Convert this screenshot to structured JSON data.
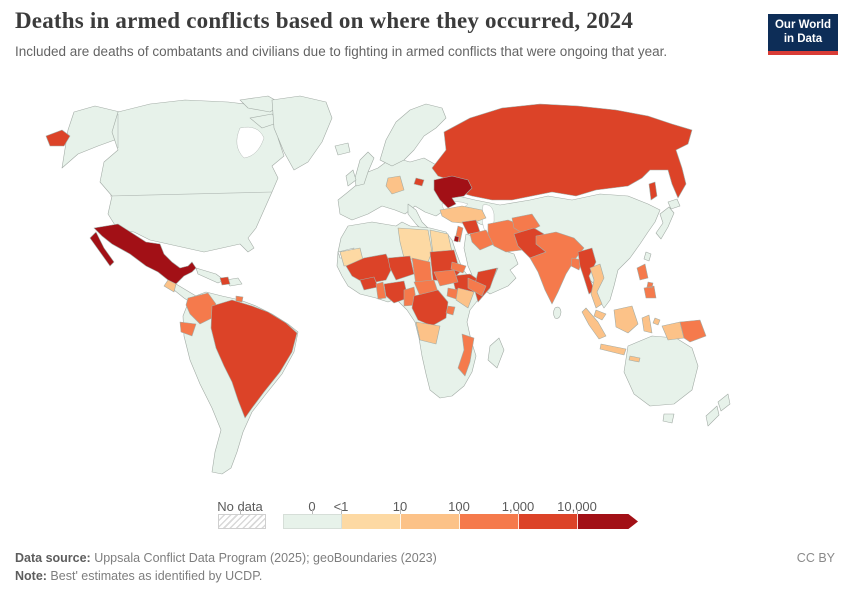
{
  "header": {
    "title": "Deaths in armed conflicts based on where they occurred, 2024",
    "subtitle": "Included are deaths of combatants and civilians due to fighting in armed conflicts that were ongoing that year.",
    "logo": {
      "line1": "Our World",
      "line2": "in Data",
      "bg": "#0d2d57",
      "accent": "#d93c36"
    }
  },
  "legend": {
    "no_data_label": "No data",
    "ticks": [
      "0",
      "<1",
      "10",
      "100",
      "1,000",
      "10,000"
    ]
  },
  "map": {
    "palette": {
      "b0": "#e7f2ea",
      "b1": "#fdd9a3",
      "b10": "#fcc288",
      "b100": "#f57a4c",
      "b1000": "#dc4328",
      "b10000": "#a21016",
      "hatch_line": "#d9d9d9"
    },
    "countries": [
      {
        "id": "ukraine",
        "band": "b10000"
      },
      {
        "id": "mexico",
        "band": "b10000"
      },
      {
        "id": "palestine",
        "band": "b10000"
      },
      {
        "id": "russia",
        "band": "b1000"
      },
      {
        "id": "brazil",
        "band": "b1000"
      },
      {
        "id": "haiti",
        "band": "b1000"
      },
      {
        "id": "syria",
        "band": "b1000"
      },
      {
        "id": "pakistan",
        "band": "b1000"
      },
      {
        "id": "myanmar",
        "band": "b1000"
      },
      {
        "id": "mali",
        "band": "b1000"
      },
      {
        "id": "niger",
        "band": "b1000"
      },
      {
        "id": "burkina-faso",
        "band": "b1000"
      },
      {
        "id": "nigeria",
        "band": "b1000"
      },
      {
        "id": "sudan",
        "band": "b1000"
      },
      {
        "id": "ethiopia",
        "band": "b1000"
      },
      {
        "id": "somalia",
        "band": "b1000"
      },
      {
        "id": "drc",
        "band": "b1000"
      },
      {
        "id": "colombia",
        "band": "b100"
      },
      {
        "id": "ecuador",
        "band": "b100"
      },
      {
        "id": "trinidad",
        "band": "b100"
      },
      {
        "id": "iran",
        "band": "b100"
      },
      {
        "id": "iraq",
        "band": "b100"
      },
      {
        "id": "israel-lebanon",
        "band": "b100"
      },
      {
        "id": "yemen",
        "band": "b100"
      },
      {
        "id": "afghanistan",
        "band": "b100"
      },
      {
        "id": "india",
        "band": "b100"
      },
      {
        "id": "bangladesh",
        "band": "b100"
      },
      {
        "id": "philippines",
        "band": "b100"
      },
      {
        "id": "papua-new-guinea",
        "band": "b100"
      },
      {
        "id": "cameroon",
        "band": "b100"
      },
      {
        "id": "car",
        "band": "b100"
      },
      {
        "id": "south-sudan",
        "band": "b100"
      },
      {
        "id": "chad",
        "band": "b100"
      },
      {
        "id": "uganda",
        "band": "b100"
      },
      {
        "id": "burundi",
        "band": "b100"
      },
      {
        "id": "mozambique",
        "band": "b100"
      },
      {
        "id": "eritrea",
        "band": "b100"
      },
      {
        "id": "benin-togo",
        "band": "b100"
      },
      {
        "id": "germany",
        "band": "b10"
      },
      {
        "id": "turkey",
        "band": "b10"
      },
      {
        "id": "guatemala",
        "band": "b10"
      },
      {
        "id": "kenya",
        "band": "b10"
      },
      {
        "id": "angola",
        "band": "b10"
      },
      {
        "id": "thailand",
        "band": "b10"
      },
      {
        "id": "malaysia",
        "band": "b10"
      },
      {
        "id": "indonesia",
        "band": "b10"
      },
      {
        "id": "libya",
        "band": "b1"
      },
      {
        "id": "egypt",
        "band": "b1"
      },
      {
        "id": "mauritania",
        "band": "b1"
      },
      {
        "id": "western-sahara",
        "band": "no_data"
      }
    ]
  },
  "footer": {
    "source_label": "Data source:",
    "source_text": " Uppsala Conflict Data Program (2025); geoBoundaries (2023)",
    "note_label": "Note:",
    "note_text": " Best' estimates as identified by UCDP.",
    "license": "CC BY"
  },
  "chart_data": {
    "type": "heatmap",
    "subtype": "choropleth-world-map",
    "title": "Deaths in armed conflicts based on where they occurred, 2024",
    "subtitle": "Included are deaths of combatants and civilians due to fighting in armed conflicts that were ongoing that year.",
    "year": 2024,
    "legend_bands": [
      "No data",
      "0",
      "<1",
      "10",
      "100",
      "1,000",
      "10,000+"
    ],
    "legend_position": "bottom",
    "series": [
      {
        "name": "Ukraine",
        "value_range": "10,000+"
      },
      {
        "name": "Mexico",
        "value_range": "10,000+"
      },
      {
        "name": "Palestine",
        "value_range": "10,000+"
      },
      {
        "name": "Russia",
        "value_range": "1,000–10,000"
      },
      {
        "name": "Brazil",
        "value_range": "1,000–10,000"
      },
      {
        "name": "Haiti",
        "value_range": "1,000–10,000"
      },
      {
        "name": "Syria",
        "value_range": "1,000–10,000"
      },
      {
        "name": "Pakistan",
        "value_range": "1,000–10,000"
      },
      {
        "name": "Myanmar",
        "value_range": "1,000–10,000"
      },
      {
        "name": "Mali",
        "value_range": "1,000–10,000"
      },
      {
        "name": "Niger",
        "value_range": "1,000–10,000"
      },
      {
        "name": "Burkina Faso",
        "value_range": "1,000–10,000"
      },
      {
        "name": "Nigeria",
        "value_range": "1,000–10,000"
      },
      {
        "name": "Sudan",
        "value_range": "1,000–10,000"
      },
      {
        "name": "Ethiopia",
        "value_range": "1,000–10,000"
      },
      {
        "name": "Somalia",
        "value_range": "1,000–10,000"
      },
      {
        "name": "Democratic Republic of Congo",
        "value_range": "1,000–10,000"
      },
      {
        "name": "Colombia",
        "value_range": "100–1,000"
      },
      {
        "name": "Ecuador",
        "value_range": "100–1,000"
      },
      {
        "name": "Trinidad and Tobago",
        "value_range": "100–1,000"
      },
      {
        "name": "Iran",
        "value_range": "100–1,000"
      },
      {
        "name": "Iraq",
        "value_range": "100–1,000"
      },
      {
        "name": "Israel/Lebanon",
        "value_range": "100–1,000"
      },
      {
        "name": "Yemen",
        "value_range": "100–1,000"
      },
      {
        "name": "Afghanistan",
        "value_range": "100–1,000"
      },
      {
        "name": "India",
        "value_range": "100–1,000"
      },
      {
        "name": "Bangladesh",
        "value_range": "100–1,000"
      },
      {
        "name": "Philippines",
        "value_range": "100–1,000"
      },
      {
        "name": "Papua New Guinea",
        "value_range": "100–1,000"
      },
      {
        "name": "Cameroon",
        "value_range": "100–1,000"
      },
      {
        "name": "Central African Republic",
        "value_range": "100–1,000"
      },
      {
        "name": "South Sudan",
        "value_range": "100–1,000"
      },
      {
        "name": "Chad",
        "value_range": "100–1,000"
      },
      {
        "name": "Uganda",
        "value_range": "100–1,000"
      },
      {
        "name": "Burundi",
        "value_range": "100–1,000"
      },
      {
        "name": "Mozambique",
        "value_range": "100–1,000"
      },
      {
        "name": "Eritrea",
        "value_range": "100–1,000"
      },
      {
        "name": "Benin/Togo",
        "value_range": "100–1,000"
      },
      {
        "name": "Germany",
        "value_range": "10–100"
      },
      {
        "name": "Turkey",
        "value_range": "10–100"
      },
      {
        "name": "Guatemala",
        "value_range": "10–100"
      },
      {
        "name": "Kenya",
        "value_range": "10–100"
      },
      {
        "name": "Angola",
        "value_range": "10–100"
      },
      {
        "name": "Thailand",
        "value_range": "10–100"
      },
      {
        "name": "Malaysia",
        "value_range": "10–100"
      },
      {
        "name": "Indonesia",
        "value_range": "10–100"
      },
      {
        "name": "Libya",
        "value_range": "<1–10"
      },
      {
        "name": "Egypt",
        "value_range": "<1–10"
      },
      {
        "name": "Mauritania",
        "value_range": "<1–10"
      },
      {
        "name": "Western Sahara",
        "value_range": "No data"
      },
      {
        "name": "United States, Canada, Greenland, most of Europe, China, Mongolia, Japan, Australia, Argentina and other unshaded countries",
        "value_range": "0"
      }
    ]
  }
}
